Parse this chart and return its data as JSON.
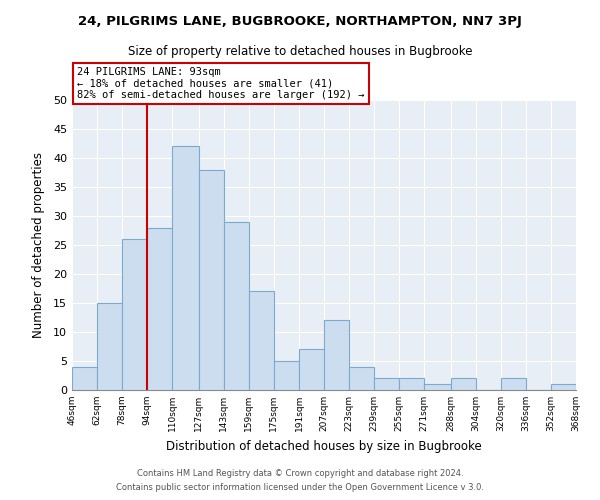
{
  "title": "24, PILGRIMS LANE, BUGBROOKE, NORTHAMPTON, NN7 3PJ",
  "subtitle": "Size of property relative to detached houses in Bugbrooke",
  "xlabel": "Distribution of detached houses by size in Bugbrooke",
  "ylabel": "Number of detached properties",
  "footer_line1": "Contains HM Land Registry data © Crown copyright and database right 2024.",
  "footer_line2": "Contains public sector information licensed under the Open Government Licence v 3.0.",
  "bin_edges": [
    46,
    62,
    78,
    94,
    110,
    127,
    143,
    159,
    175,
    191,
    207,
    223,
    239,
    255,
    271,
    288,
    304,
    320,
    336,
    352,
    368
  ],
  "bar_heights": [
    4,
    15,
    26,
    28,
    42,
    38,
    29,
    17,
    5,
    7,
    12,
    4,
    2,
    2,
    1,
    2,
    0,
    2,
    0,
    1
  ],
  "bin_labels": [
    "46sqm",
    "62sqm",
    "78sqm",
    "94sqm",
    "110sqm",
    "127sqm",
    "143sqm",
    "159sqm",
    "175sqm",
    "191sqm",
    "207sqm",
    "223sqm",
    "239sqm",
    "255sqm",
    "271sqm",
    "288sqm",
    "304sqm",
    "320sqm",
    "336sqm",
    "352sqm",
    "368sqm"
  ],
  "bar_color": "#ccddf0",
  "bar_edge_color": "#7aabcf",
  "vline_x": 94,
  "vline_color": "#cc0000",
  "annotation_text_line1": "24 PILGRIMS LANE: 93sqm",
  "annotation_text_line2": "← 18% of detached houses are smaller (41)",
  "annotation_text_line3": "82% of semi-detached houses are larger (192) →",
  "ylim": [
    0,
    50
  ],
  "yticks": [
    0,
    5,
    10,
    15,
    20,
    25,
    30,
    35,
    40,
    45,
    50
  ],
  "plot_bg_color": "#e8eef5",
  "background_color": "#ffffff",
  "grid_color": "#ffffff"
}
